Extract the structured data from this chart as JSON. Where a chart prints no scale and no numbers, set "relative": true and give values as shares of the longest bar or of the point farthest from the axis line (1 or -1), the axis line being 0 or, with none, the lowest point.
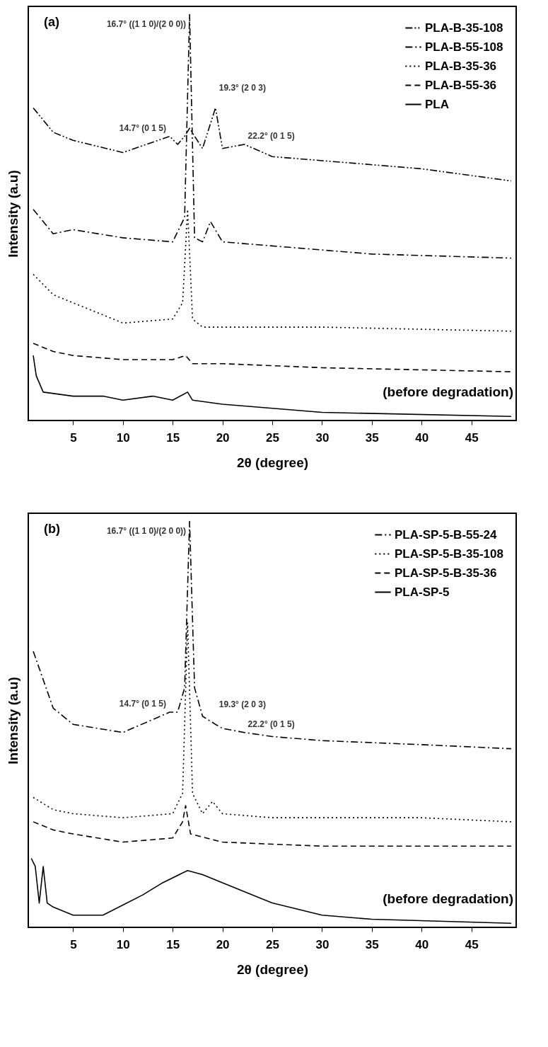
{
  "chart_data": [
    {
      "type": "line",
      "title": "(a)",
      "xlabel": "2θ (degree)",
      "ylabel": "Intensity (a.u)",
      "relative": true,
      "xlim": [
        0.5,
        49.5
      ],
      "xticks": [
        5,
        10,
        15,
        20,
        25,
        30,
        35,
        40,
        45
      ],
      "grid": false,
      "legend": "top right",
      "marker": "none",
      "series": [
        {
          "name": "PLA-B-35-108",
          "color": "#000000",
          "line_style": "dashdotdot",
          "x": [
            1,
            3,
            5,
            10,
            14.7,
            15.5,
            16.2,
            16.7,
            17.2,
            18,
            19.3,
            20,
            22.2,
            25,
            30,
            40,
            49
          ],
          "values": [
            0.77,
            0.71,
            0.69,
            0.66,
            0.7,
            0.68,
            0.7,
            0.72,
            0.7,
            0.67,
            0.77,
            0.67,
            0.68,
            0.65,
            0.64,
            0.62,
            0.59
          ]
        },
        {
          "name": "PLA-B-55-108",
          "color": "#000000",
          "line_style": "dashdot",
          "x": [
            1,
            3,
            5,
            10,
            15,
            16.2,
            16.7,
            17.2,
            18,
            18.8,
            20,
            25,
            35,
            49
          ],
          "values": [
            0.52,
            0.46,
            0.47,
            0.45,
            0.44,
            0.5,
            1,
            0.45,
            0.44,
            0.49,
            0.44,
            0.43,
            0.41,
            0.4
          ]
        },
        {
          "name": "PLA-B-35-36",
          "color": "#000000",
          "line_style": "dotted",
          "x": [
            1,
            3,
            5,
            10,
            15,
            16.0,
            16.5,
            17.0,
            18,
            20,
            30,
            49
          ],
          "values": [
            0.36,
            0.31,
            0.29,
            0.24,
            0.25,
            0.29,
            0.52,
            0.25,
            0.23,
            0.23,
            0.23,
            0.22
          ]
        },
        {
          "name": "PLA-B-55-36",
          "color": "#000000",
          "line_style": "dashed",
          "x": [
            1,
            3,
            5,
            10,
            15,
            16.3,
            17,
            20,
            30,
            49
          ],
          "values": [
            0.19,
            0.17,
            0.16,
            0.15,
            0.15,
            0.16,
            0.14,
            0.14,
            0.13,
            0.12
          ]
        },
        {
          "name": "PLA",
          "color": "#000000",
          "line_style": "solid",
          "x": [
            1,
            1.3,
            2,
            5,
            8,
            10,
            13,
            15,
            16.5,
            17,
            20,
            30,
            49
          ],
          "values": [
            0.16,
            0.11,
            0.07,
            0.06,
            0.06,
            0.05,
            0.06,
            0.05,
            0.07,
            0.05,
            0.04,
            0.02,
            0.01
          ]
        }
      ],
      "annotations": [
        {
          "text": "16.7° ((1 1 0)/(2 0 0))",
          "x": 16.7,
          "y": 1
        },
        {
          "text": "14.7° (0 1 5)",
          "x": 14.7,
          "y": 0.7
        },
        {
          "text": "19.3° (2 0 3)",
          "x": 19.3,
          "y": 0.77
        },
        {
          "text": "22.2° (0 1 5)",
          "x": 22.2,
          "y": 0.68
        },
        "(before degradation)"
      ]
    },
    {
      "type": "line",
      "title": "(b)",
      "xlabel": "2θ (degree)",
      "ylabel": "Intensity (a.u)",
      "relative": true,
      "xlim": [
        0.5,
        49.5
      ],
      "xticks": [
        5,
        10,
        15,
        20,
        25,
        30,
        35,
        40,
        45
      ],
      "grid": false,
      "legend": "top right",
      "marker": "none",
      "series": [
        {
          "name": "PLA-SP-5-B-55-24",
          "color": "#000000",
          "line_style": "dashdot",
          "x": [
            1,
            3,
            5,
            10,
            14.7,
            15.5,
            16.2,
            16.7,
            17.2,
            18,
            19.3,
            20,
            22.2,
            25,
            30,
            40,
            49
          ],
          "values": [
            0.68,
            0.54,
            0.5,
            0.48,
            0.53,
            0.53,
            0.59,
            1,
            0.59,
            0.52,
            0.5,
            0.49,
            0.48,
            0.47,
            0.46,
            0.45,
            0.44
          ]
        },
        {
          "name": "PLA-SP-5-B-35-108",
          "color": "#000000",
          "line_style": "dotted",
          "x": [
            1,
            3,
            5,
            10,
            15,
            16.0,
            16.5,
            17.0,
            18,
            19,
            20,
            25,
            40,
            49
          ],
          "values": [
            0.32,
            0.29,
            0.28,
            0.27,
            0.28,
            0.33,
            0.75,
            0.33,
            0.28,
            0.31,
            0.28,
            0.27,
            0.27,
            0.26
          ]
        },
        {
          "name": "PLA-SP-5-B-35-36",
          "color": "#000000",
          "line_style": "dashed",
          "x": [
            1,
            3,
            5,
            10,
            15,
            16.0,
            16.3,
            16.8,
            20,
            30,
            49
          ],
          "values": [
            0.26,
            0.24,
            0.23,
            0.21,
            0.22,
            0.26,
            0.3,
            0.23,
            0.21,
            0.2,
            0.2
          ]
        },
        {
          "name": "PLA-SP-5",
          "color": "#000000",
          "line_style": "solid",
          "x": [
            0.8,
            1.2,
            1.6,
            2.0,
            2.4,
            3,
            5,
            8,
            12,
            14,
            16.5,
            18,
            20,
            25,
            30,
            35,
            49
          ],
          "values": [
            0.17,
            0.15,
            0.06,
            0.15,
            0.06,
            0.05,
            0.03,
            0.03,
            0.08,
            0.11,
            0.14,
            0.13,
            0.11,
            0.06,
            0.03,
            0.02,
            0.01
          ]
        }
      ],
      "annotations": [
        {
          "text": "16.7° ((1 1 0)/(2 0 0))",
          "x": 16.7,
          "y": 1
        },
        {
          "text": "14.7° (0 1 5)",
          "x": 14.7,
          "y": 0.53
        },
        {
          "text": "19.3° (2 0 3)",
          "x": 19.3,
          "y": 0.5
        },
        {
          "text": "22.2° (0 1 5)",
          "x": 22.2,
          "y": 0.48
        },
        "(before degradation)"
      ]
    }
  ]
}
